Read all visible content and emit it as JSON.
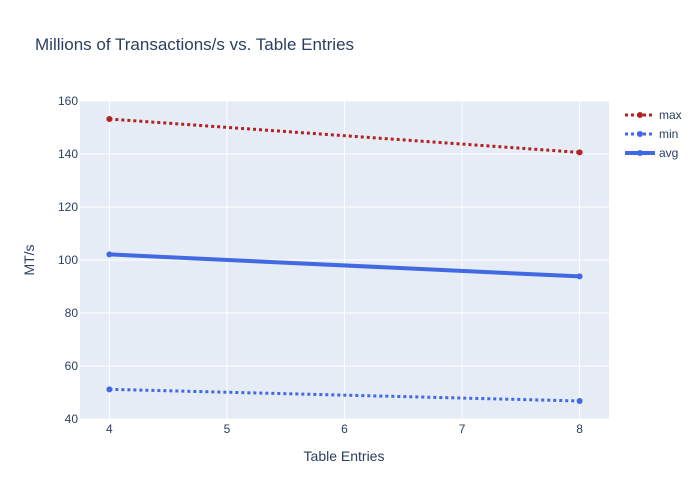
{
  "chart_data": {
    "type": "line",
    "title": "Millions of Transactions/s vs. Table Entries",
    "xlabel": "Table Entries",
    "ylabel": "MT/s",
    "x": [
      4,
      8
    ],
    "xlim": [
      3.75,
      8.25
    ],
    "ylim": [
      40,
      160
    ],
    "xticks": [
      4,
      5,
      6,
      7,
      8
    ],
    "yticks": [
      40,
      60,
      80,
      100,
      120,
      140,
      160
    ],
    "grid": true,
    "legend_position": "top-right",
    "background": "#e5ecf6",
    "series": [
      {
        "name": "max",
        "values": [
          153.2,
          140.6
        ],
        "color": "#b22222",
        "dash": "dot",
        "width": 3
      },
      {
        "name": "min",
        "values": [
          51.2,
          46.8
        ],
        "color": "#4169e1",
        "dash": "dot",
        "width": 3
      },
      {
        "name": "avg",
        "values": [
          102.1,
          93.8
        ],
        "color": "#4169e1",
        "dash": "solid",
        "width": 4
      }
    ]
  }
}
